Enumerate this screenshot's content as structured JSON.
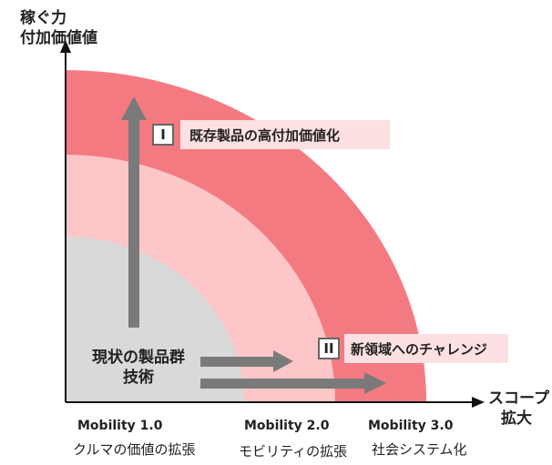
{
  "y_axis": {
    "line1": "稼ぐ力",
    "line2": "付加価値値"
  },
  "x_axis": {
    "line1": "スコープ",
    "line2": "拡大"
  },
  "core_label": {
    "line1": "現状の製品群",
    "line2": "技術"
  },
  "markers": [
    {
      "numeral": "I",
      "text": "既存製品の高付加価値化"
    },
    {
      "numeral": "II",
      "text": "新領域へのチャレンジ"
    }
  ],
  "stages": [
    {
      "name": "Mobility 1.0",
      "desc": "クルマの価値の拡張"
    },
    {
      "name": "Mobility 2.0",
      "desc": "モビリティの拡張"
    },
    {
      "name": "Mobility 3.0",
      "desc": "社会システム化"
    }
  ],
  "colors": {
    "outer_ring": "#f47a82",
    "middle_ring": "#fdc6c8",
    "inner_core": "#d9d9d9",
    "arrow": "#7a7a7a",
    "highlight_band": "#fde0e2"
  }
}
